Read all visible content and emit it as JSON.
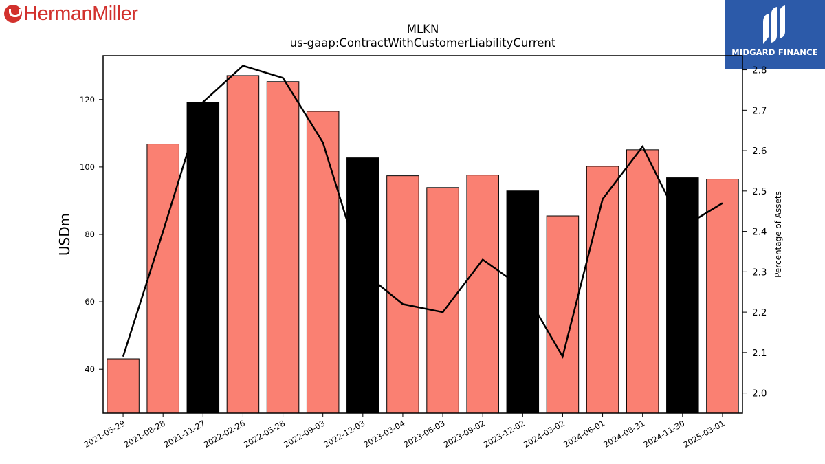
{
  "header": {
    "brand_left": "HermanMiller",
    "brand_right": "MIDGARD FINANCE"
  },
  "chart_data": {
    "type": "bar",
    "title": "MLKN",
    "subtitle": "us-gaap:ContractWithCustomerLiabilityCurrent",
    "ylabel": "USDm",
    "y2label": "Percentage of Assets",
    "ylim": [
      27,
      133
    ],
    "y2lim": [
      1.95,
      2.835
    ],
    "yticks": [
      40,
      60,
      80,
      100,
      120
    ],
    "y2ticks": [
      2.0,
      2.1,
      2.2,
      2.3,
      2.4,
      2.5,
      2.6,
      2.7,
      2.8
    ],
    "categories": [
      "2021-05-29",
      "2021-08-28",
      "2021-11-27",
      "2022-02-26",
      "2022-05-28",
      "2022-09-03",
      "2022-12-03",
      "2023-03-04",
      "2023-06-03",
      "2023-09-02",
      "2023-12-02",
      "2024-03-02",
      "2024-06-01",
      "2024-08-31",
      "2024-11-30",
      "2025-03-01"
    ],
    "series": [
      {
        "axis": "left",
        "kind": "bar",
        "values": [
          43.1,
          106.8,
          119.1,
          127.1,
          125.3,
          116.5,
          102.7,
          97.4,
          93.9,
          97.6,
          92.9,
          85.5,
          100.2,
          105.1,
          96.8,
          96.4
        ],
        "highlight": [
          false,
          false,
          true,
          false,
          false,
          false,
          true,
          false,
          false,
          false,
          true,
          false,
          false,
          false,
          true,
          false
        ]
      },
      {
        "axis": "right",
        "kind": "line",
        "values": [
          2.09,
          2.4,
          2.72,
          2.81,
          2.78,
          2.62,
          2.3,
          2.22,
          2.2,
          2.33,
          2.26,
          2.09,
          2.48,
          2.61,
          2.41,
          2.47
        ]
      }
    ],
    "colors": {
      "bar": "#fa8072",
      "bar_highlight": "#000000",
      "line": "#000000",
      "brand_left": "#d2312d",
      "brand_right_bg": "#2c5aa9"
    },
    "grid": false
  }
}
